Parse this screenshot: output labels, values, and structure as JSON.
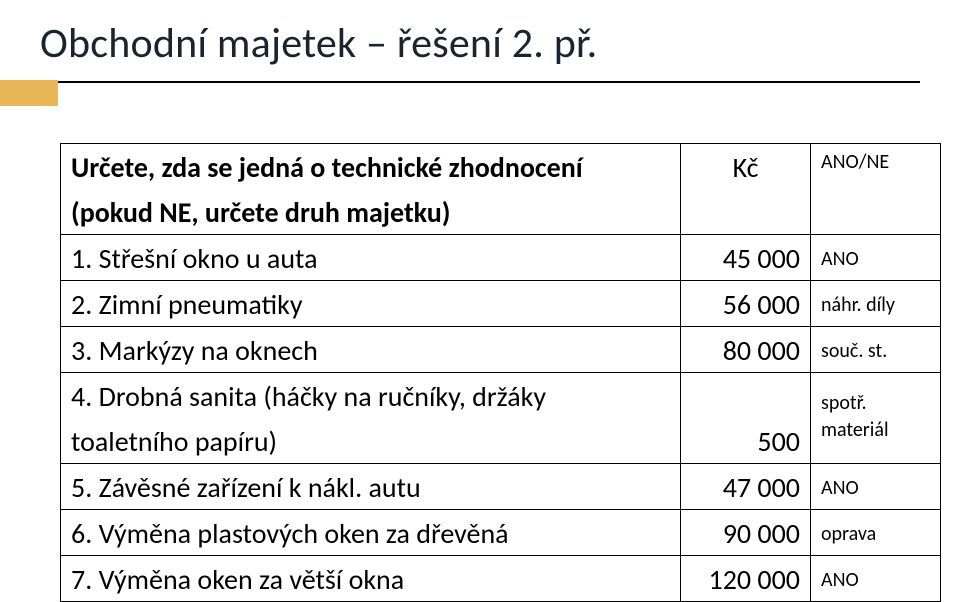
{
  "title": "Obchodní majetek – řešení 2. př.",
  "colors": {
    "text": "#000000",
    "title": "#1a242f",
    "accent": "#e8b657",
    "border": "#000000",
    "background": "#ffffff"
  },
  "typography": {
    "title_fontsize": 42,
    "cell_fontsize": 28,
    "note_fontsize": 20
  },
  "table": {
    "header_desc": "Určete, zda se jedná o technické zhodnocení",
    "header_sub": "(pokud NE, určete druh majetku)",
    "header_amt": "Kč",
    "header_note": "ANO/NE",
    "rows": [
      {
        "desc": "1. Střešní okno u auta",
        "amt": "45 000",
        "note": "ANO"
      },
      {
        "desc": "2. Zimní pneumatiky",
        "amt": "56 000",
        "note": "náhr. díly"
      },
      {
        "desc": "3. Markýzy na oknech",
        "amt": "80 000",
        "note": "souč. st."
      },
      {
        "desc_top": "4. Drobná sanita (háčky na ručníky, držáky",
        "desc_bot": "toaletního papíru)",
        "amt": "500",
        "note_top": "spotř.",
        "note_bot": "materiál"
      },
      {
        "desc": "5. Závěsné zařízení k nákl. autu",
        "amt": "47 000",
        "note": "ANO"
      },
      {
        "desc": "6. Výměna plastových oken za dřevěná",
        "amt": "90 000",
        "note": "oprava"
      },
      {
        "desc": "7. Výměna oken za větší okna",
        "amt": "120 000",
        "note": "ANO"
      }
    ]
  }
}
